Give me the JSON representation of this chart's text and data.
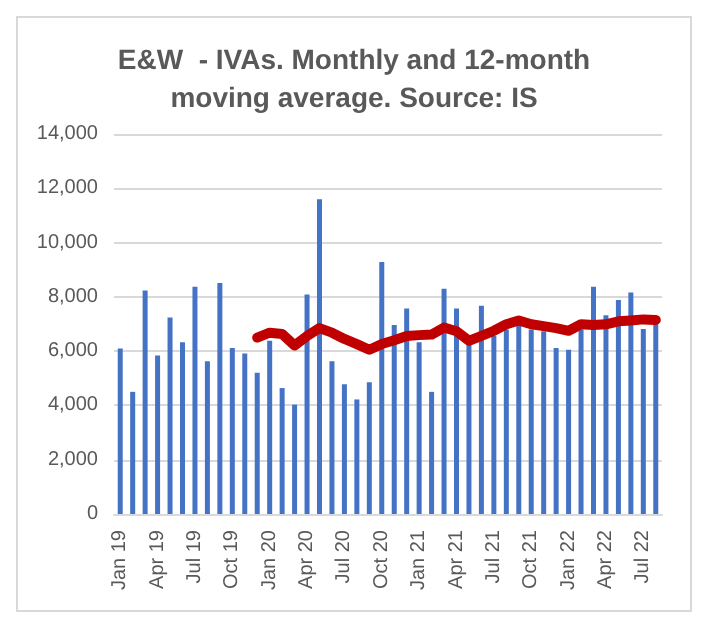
{
  "chart_data": {
    "type": "bar",
    "title": "E&W  - IVAs. Monthly and 12-month\nmoving average. Source: IS",
    "categories": [
      "Jan 19",
      null,
      null,
      "Apr 19",
      null,
      null,
      "Jul 19",
      null,
      null,
      "Oct 19",
      null,
      null,
      "Jan 20",
      null,
      null,
      "Apr 20",
      null,
      null,
      "Jul 20",
      null,
      null,
      "Oct 20",
      null,
      null,
      "Jan 21",
      null,
      null,
      "Apr 21",
      null,
      null,
      "Jul 21",
      null,
      null,
      "Oct 21",
      null,
      null,
      "Jan 22",
      null,
      null,
      "Apr 22",
      null,
      null,
      "Jul 22",
      null
    ],
    "series": [
      {
        "color": "#4472c4",
        "values": [
          6100,
          4500,
          8230,
          5840,
          7240,
          6330,
          8370,
          5630,
          8510,
          6120,
          5910,
          5200,
          6380,
          4640,
          4030,
          8090,
          11600,
          5630,
          4780,
          4220,
          4850,
          9280,
          6960,
          7570,
          6330,
          4500,
          8300,
          7570,
          6330,
          7670,
          6560,
          6800,
          7030,
          6800,
          6730,
          6120,
          6050,
          6800,
          8370,
          7320,
          7880,
          8160,
          6820,
          7030
        ]
      },
      {
        "type": "line",
        "color": "#c00000",
        "values": [
          null,
          null,
          null,
          null,
          null,
          null,
          null,
          null,
          null,
          null,
          null,
          6500,
          6680,
          6630,
          6210,
          6560,
          6850,
          6680,
          6450,
          6260,
          6050,
          6260,
          6400,
          6560,
          6590,
          6610,
          6870,
          6730,
          6380,
          6560,
          6750,
          6990,
          7130,
          6990,
          6920,
          6850,
          6750,
          6990,
          6960,
          6990,
          7100,
          7130,
          7170,
          7150
        ]
      }
    ],
    "ylim": [
      0,
      14000
    ],
    "yticks": [
      0,
      {
        "value": 2000,
        "label": "2,000"
      },
      {
        "value": 4000,
        "label": "4,000"
      },
      {
        "value": 6000,
        "label": "6,000"
      },
      {
        "value": 8000,
        "label": "8,000"
      },
      {
        "value": 10000,
        "label": "10,000"
      },
      {
        "value": 12000,
        "label": "12,000"
      },
      {
        "value": 14000,
        "label": "14,000"
      }
    ],
    "grid": "y",
    "line_style": "solid"
  }
}
